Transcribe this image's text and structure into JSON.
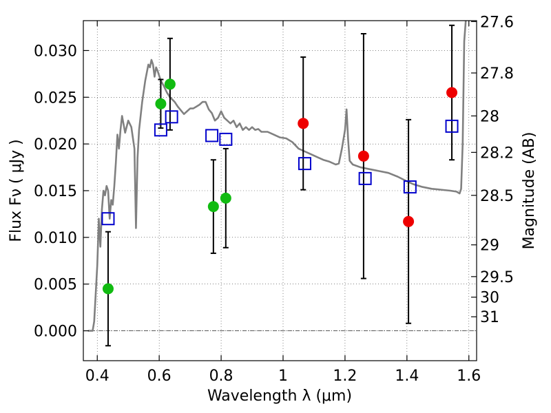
{
  "chart_data": {
    "type": "scatter",
    "xlabel": "Wavelength  λ (μm)",
    "ylabel": "Flux  Fν  ( μJy )",
    "y2label": "Magnitude (AB)",
    "xlim": [
      0.355,
      1.625
    ],
    "ylim": [
      -0.0032,
      0.0332
    ],
    "x_ticks": [
      0.4,
      0.6,
      0.8,
      1.0,
      1.2,
      1.4,
      1.6
    ],
    "x_tick_labels": [
      "0.4",
      "0.6",
      "0.8",
      "1",
      "1.2",
      "1.4",
      "1.6"
    ],
    "y_ticks": [
      0.0,
      0.005,
      0.01,
      0.015,
      0.02,
      0.025,
      0.03
    ],
    "y_tick_labels": [
      "0.000",
      "0.005",
      "0.010",
      "0.015",
      "0.020",
      "0.025",
      "0.030"
    ],
    "y2_ticks": [
      {
        "label": "27.6",
        "flux": 0.0331
      },
      {
        "label": "27.8",
        "flux": 0.0276
      },
      {
        "label": "28",
        "flux": 0.023
      },
      {
        "label": "28.2",
        "flux": 0.0191
      },
      {
        "label": "28.5",
        "flux": 0.0145
      },
      {
        "label": "29",
        "flux": 0.0092
      },
      {
        "label": "29.5",
        "flux": 0.0058
      },
      {
        "label": "30",
        "flux": 0.0036
      },
      {
        "label": "31",
        "flux": 0.0015
      }
    ],
    "grid": true,
    "colors": {
      "green": "#11bb11",
      "red": "#ee0000",
      "model_box": "#0000cc",
      "sed_line": "#808080"
    },
    "series": [
      {
        "marker": "green-circle",
        "points": [
          {
            "x": 0.435,
            "y": 0.0045,
            "yerr": 0.0061
          },
          {
            "x": 0.605,
            "y": 0.0243,
            "yerr": 0.0026
          },
          {
            "x": 0.635,
            "y": 0.0264,
            "yerr": 0.0049
          },
          {
            "x": 0.775,
            "y": 0.0133,
            "yerr": 0.005
          },
          {
            "x": 0.815,
            "y": 0.0142,
            "yerr": 0.0053
          }
        ]
      },
      {
        "marker": "red-circle",
        "points": [
          {
            "x": 1.065,
            "y": 0.0222,
            "yerr": 0.0071
          },
          {
            "x": 1.26,
            "y": 0.0187,
            "yerr": 0.0131
          },
          {
            "x": 1.405,
            "y": 0.0117,
            "yerr": 0.0109
          },
          {
            "x": 1.545,
            "y": 0.0255,
            "yerr": 0.0072
          }
        ]
      },
      {
        "marker": "blue-open-square",
        "points": [
          {
            "x": 0.435,
            "y": 0.012
          },
          {
            "x": 0.605,
            "y": 0.0215
          },
          {
            "x": 0.64,
            "y": 0.0229
          },
          {
            "x": 0.77,
            "y": 0.0209
          },
          {
            "x": 0.815,
            "y": 0.0205
          },
          {
            "x": 1.07,
            "y": 0.0179
          },
          {
            "x": 1.265,
            "y": 0.0163
          },
          {
            "x": 1.41,
            "y": 0.0154
          },
          {
            "x": 1.545,
            "y": 0.0219
          }
        ]
      },
      {
        "marker": "gray-line",
        "points": [
          [
            0.37,
            0.0
          ],
          [
            0.38,
            0.0
          ],
          [
            0.385,
            0.0
          ],
          [
            0.39,
            0.001
          ],
          [
            0.4,
            0.007
          ],
          [
            0.405,
            0.012
          ],
          [
            0.41,
            0.009
          ],
          [
            0.415,
            0.013
          ],
          [
            0.42,
            0.015
          ],
          [
            0.425,
            0.0145
          ],
          [
            0.43,
            0.0155
          ],
          [
            0.435,
            0.015
          ],
          [
            0.44,
            0.012
          ],
          [
            0.445,
            0.014
          ],
          [
            0.45,
            0.0135
          ],
          [
            0.455,
            0.0155
          ],
          [
            0.46,
            0.018
          ],
          [
            0.465,
            0.021
          ],
          [
            0.47,
            0.0195
          ],
          [
            0.475,
            0.0215
          ],
          [
            0.48,
            0.023
          ],
          [
            0.49,
            0.0212
          ],
          [
            0.5,
            0.0225
          ],
          [
            0.51,
            0.0218
          ],
          [
            0.52,
            0.0195
          ],
          [
            0.525,
            0.011
          ],
          [
            0.53,
            0.0185
          ],
          [
            0.535,
            0.0215
          ],
          [
            0.545,
            0.0245
          ],
          [
            0.555,
            0.0268
          ],
          [
            0.565,
            0.0285
          ],
          [
            0.57,
            0.0282
          ],
          [
            0.575,
            0.029
          ],
          [
            0.58,
            0.0285
          ],
          [
            0.585,
            0.0272
          ],
          [
            0.59,
            0.0282
          ],
          [
            0.595,
            0.0278
          ],
          [
            0.605,
            0.0268
          ],
          [
            0.615,
            0.0262
          ],
          [
            0.625,
            0.0255
          ],
          [
            0.635,
            0.025
          ],
          [
            0.65,
            0.0245
          ],
          [
            0.66,
            0.024
          ],
          [
            0.67,
            0.0236
          ],
          [
            0.68,
            0.0232
          ],
          [
            0.69,
            0.0235
          ],
          [
            0.7,
            0.0238
          ],
          [
            0.71,
            0.0238
          ],
          [
            0.72,
            0.024
          ],
          [
            0.73,
            0.0242
          ],
          [
            0.74,
            0.0245
          ],
          [
            0.75,
            0.0245
          ],
          [
            0.76,
            0.0237
          ],
          [
            0.77,
            0.0233
          ],
          [
            0.78,
            0.0225
          ],
          [
            0.79,
            0.0228
          ],
          [
            0.8,
            0.0235
          ],
          [
            0.81,
            0.0228
          ],
          [
            0.82,
            0.0225
          ],
          [
            0.83,
            0.0222
          ],
          [
            0.84,
            0.0225
          ],
          [
            0.85,
            0.0218
          ],
          [
            0.86,
            0.0222
          ],
          [
            0.87,
            0.0215
          ],
          [
            0.88,
            0.0218
          ],
          [
            0.89,
            0.0215
          ],
          [
            0.9,
            0.0218
          ],
          [
            0.91,
            0.0215
          ],
          [
            0.92,
            0.0216
          ],
          [
            0.93,
            0.0213
          ],
          [
            0.95,
            0.0213
          ],
          [
            0.97,
            0.021
          ],
          [
            0.99,
            0.0207
          ],
          [
            1.01,
            0.0206
          ],
          [
            1.03,
            0.0202
          ],
          [
            1.05,
            0.0195
          ],
          [
            1.07,
            0.0192
          ],
          [
            1.09,
            0.0189
          ],
          [
            1.11,
            0.0186
          ],
          [
            1.13,
            0.0183
          ],
          [
            1.15,
            0.0181
          ],
          [
            1.17,
            0.0178
          ],
          [
            1.18,
            0.0179
          ],
          [
            1.19,
            0.0195
          ],
          [
            1.2,
            0.0215
          ],
          [
            1.205,
            0.0237
          ],
          [
            1.21,
            0.0205
          ],
          [
            1.215,
            0.0182
          ],
          [
            1.225,
            0.0178
          ],
          [
            1.25,
            0.0175
          ],
          [
            1.28,
            0.0173
          ],
          [
            1.31,
            0.0171
          ],
          [
            1.34,
            0.0169
          ],
          [
            1.37,
            0.0165
          ],
          [
            1.4,
            0.016
          ],
          [
            1.42,
            0.0157
          ],
          [
            1.45,
            0.0154
          ],
          [
            1.48,
            0.0152
          ],
          [
            1.51,
            0.0151
          ],
          [
            1.54,
            0.015
          ],
          [
            1.56,
            0.0149
          ],
          [
            1.57,
            0.0147
          ],
          [
            1.575,
            0.0152
          ],
          [
            1.58,
            0.02
          ],
          [
            1.585,
            0.031
          ],
          [
            1.59,
            0.0332
          ]
        ]
      }
    ]
  }
}
